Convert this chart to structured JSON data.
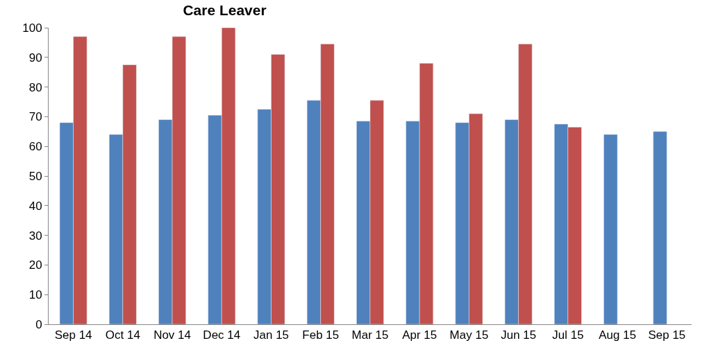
{
  "chart_data": {
    "type": "bar",
    "title": "Care Leaver",
    "categories": [
      "Sep 14",
      "Oct 14",
      "Nov 14",
      "Dec 14",
      "Jan 15",
      "Feb 15",
      "Mar 15",
      "Apr 15",
      "May 15",
      "Jun 15",
      "Jul 15",
      "Aug 15",
      "Sep 15"
    ],
    "series": [
      {
        "color": "#4f81bd",
        "values": [
          68,
          64,
          69,
          70.5,
          72.5,
          75.5,
          68.5,
          68.5,
          68,
          69,
          67.5,
          64,
          65
        ]
      },
      {
        "color": "#c0504d",
        "values": [
          97,
          87.5,
          97,
          100,
          91,
          94.5,
          75.5,
          88,
          71,
          94.5,
          66.5,
          null,
          null
        ]
      }
    ],
    "ylim": [
      0,
      100
    ],
    "yticks": [
      0,
      10,
      20,
      30,
      40,
      50,
      60,
      70,
      80,
      90,
      100
    ]
  }
}
